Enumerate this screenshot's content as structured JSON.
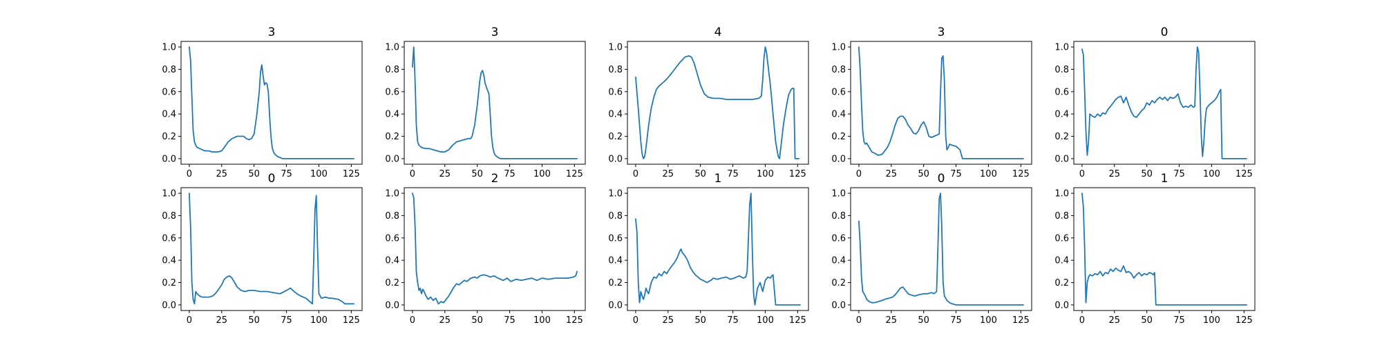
{
  "figure": {
    "background": "#ffffff",
    "line_color": "#1f77b4"
  },
  "chart_data": [
    {
      "type": "line",
      "title": "3",
      "xlim": [
        0,
        127
      ],
      "ylim": [
        0,
        1
      ],
      "xticks": [
        0,
        25,
        50,
        75,
        100,
        125
      ],
      "yticks": [
        0.0,
        0.2,
        0.4,
        0.6,
        0.8,
        1.0
      ],
      "x": [
        0,
        1,
        2,
        3,
        4,
        5,
        6,
        8,
        10,
        12,
        15,
        18,
        20,
        22,
        25,
        27,
        30,
        33,
        35,
        37,
        39,
        42,
        44,
        46,
        48,
        50,
        52,
        54,
        55,
        56,
        57,
        58,
        59,
        60,
        61,
        62,
        63,
        64,
        65,
        66,
        68,
        70,
        72,
        73,
        75,
        127
      ],
      "y": [
        1.0,
        0.88,
        0.55,
        0.25,
        0.15,
        0.12,
        0.1,
        0.09,
        0.08,
        0.07,
        0.07,
        0.06,
        0.06,
        0.06,
        0.07,
        0.1,
        0.15,
        0.18,
        0.19,
        0.2,
        0.2,
        0.2,
        0.18,
        0.17,
        0.18,
        0.22,
        0.38,
        0.6,
        0.78,
        0.84,
        0.74,
        0.66,
        0.68,
        0.67,
        0.6,
        0.38,
        0.2,
        0.1,
        0.06,
        0.04,
        0.02,
        0.01,
        0.0,
        0.0,
        0.0,
        0.0
      ]
    },
    {
      "type": "line",
      "title": "3",
      "xlim": [
        0,
        127
      ],
      "ylim": [
        0,
        1
      ],
      "xticks": [
        0,
        25,
        50,
        75,
        100,
        125
      ],
      "yticks": [
        0.0,
        0.2,
        0.4,
        0.6,
        0.8,
        1.0
      ],
      "x": [
        0,
        1,
        2,
        3,
        4,
        5,
        7,
        10,
        13,
        16,
        19,
        22,
        25,
        28,
        31,
        34,
        37,
        40,
        43,
        45,
        46,
        48,
        50,
        52,
        53,
        54,
        55,
        56,
        57,
        58,
        59,
        60,
        61,
        62,
        63,
        64,
        65,
        66,
        68,
        70,
        72,
        75,
        127
      ],
      "y": [
        0.82,
        1.0,
        0.7,
        0.3,
        0.15,
        0.12,
        0.1,
        0.09,
        0.09,
        0.08,
        0.07,
        0.06,
        0.06,
        0.08,
        0.12,
        0.15,
        0.16,
        0.17,
        0.18,
        0.18,
        0.2,
        0.3,
        0.48,
        0.7,
        0.77,
        0.79,
        0.75,
        0.68,
        0.64,
        0.61,
        0.58,
        0.4,
        0.2,
        0.1,
        0.05,
        0.03,
        0.02,
        0.01,
        0.0,
        0.0,
        0.0,
        0.0,
        0.0
      ]
    },
    {
      "type": "line",
      "title": "4",
      "xlim": [
        0,
        127
      ],
      "ylim": [
        0,
        1
      ],
      "xticks": [
        0,
        25,
        50,
        75,
        100,
        125
      ],
      "yticks": [
        0.0,
        0.2,
        0.4,
        0.6,
        0.8,
        1.0
      ],
      "x": [
        0,
        2,
        4,
        5,
        6,
        7,
        8,
        10,
        12,
        14,
        16,
        18,
        20,
        23,
        26,
        30,
        34,
        38,
        41,
        43,
        45,
        47,
        50,
        53,
        56,
        60,
        65,
        70,
        75,
        80,
        85,
        90,
        95,
        97,
        98,
        99,
        100,
        101,
        102,
        104,
        106,
        108,
        110,
        111,
        112,
        114,
        116,
        118,
        120,
        121,
        122,
        123,
        124,
        125,
        126
      ],
      "y": [
        0.73,
        0.45,
        0.15,
        0.04,
        0.0,
        0.02,
        0.1,
        0.3,
        0.45,
        0.55,
        0.62,
        0.65,
        0.67,
        0.7,
        0.74,
        0.8,
        0.86,
        0.91,
        0.92,
        0.91,
        0.86,
        0.78,
        0.66,
        0.58,
        0.55,
        0.54,
        0.54,
        0.53,
        0.53,
        0.53,
        0.53,
        0.53,
        0.54,
        0.56,
        0.7,
        0.9,
        1.0,
        0.95,
        0.85,
        0.65,
        0.4,
        0.15,
        0.02,
        0.0,
        0.1,
        0.3,
        0.45,
        0.57,
        0.62,
        0.63,
        0.63,
        0.0,
        0.0,
        0.0,
        0.0
      ]
    },
    {
      "type": "line",
      "title": "3",
      "xlim": [
        0,
        127
      ],
      "ylim": [
        0,
        1
      ],
      "xticks": [
        0,
        25,
        50,
        75,
        100,
        125
      ],
      "yticks": [
        0.0,
        0.2,
        0.4,
        0.6,
        0.8,
        1.0
      ],
      "x": [
        0,
        1,
        2,
        3,
        4,
        5,
        6,
        8,
        10,
        12,
        15,
        18,
        20,
        22,
        24,
        26,
        28,
        30,
        32,
        34,
        36,
        38,
        40,
        42,
        44,
        46,
        48,
        50,
        52,
        54,
        56,
        58,
        60,
        62,
        63,
        64,
        65,
        66,
        67,
        68,
        69,
        70,
        72,
        75,
        78,
        80,
        127
      ],
      "y": [
        1.0,
        0.8,
        0.5,
        0.25,
        0.15,
        0.13,
        0.14,
        0.1,
        0.06,
        0.05,
        0.03,
        0.04,
        0.07,
        0.1,
        0.15,
        0.22,
        0.3,
        0.36,
        0.38,
        0.38,
        0.35,
        0.3,
        0.27,
        0.23,
        0.22,
        0.25,
        0.3,
        0.33,
        0.28,
        0.2,
        0.19,
        0.2,
        0.21,
        0.22,
        0.6,
        0.9,
        0.92,
        0.7,
        0.2,
        0.08,
        0.1,
        0.13,
        0.12,
        0.11,
        0.08,
        0.0,
        0.0
      ]
    },
    {
      "type": "line",
      "title": "0",
      "xlim": [
        0,
        127
      ],
      "ylim": [
        0,
        1
      ],
      "xticks": [
        0,
        25,
        50,
        75,
        100,
        125
      ],
      "yticks": [
        0.0,
        0.2,
        0.4,
        0.6,
        0.8,
        1.0
      ],
      "x": [
        0,
        1,
        2,
        3,
        4,
        5,
        6,
        8,
        10,
        12,
        14,
        16,
        18,
        20,
        22,
        24,
        26,
        28,
        30,
        32,
        34,
        36,
        38,
        40,
        42,
        44,
        46,
        48,
        50,
        52,
        54,
        56,
        58,
        60,
        62,
        64,
        66,
        68,
        70,
        72,
        74,
        76,
        78,
        80,
        82,
        84,
        86,
        87,
        88,
        89,
        90,
        91,
        92,
        93,
        94,
        95,
        96,
        98,
        100,
        102,
        104,
        106,
        107,
        108,
        110,
        127
      ],
      "y": [
        0.98,
        0.93,
        0.6,
        0.25,
        0.03,
        0.15,
        0.4,
        0.38,
        0.37,
        0.4,
        0.38,
        0.41,
        0.4,
        0.44,
        0.47,
        0.5,
        0.53,
        0.55,
        0.56,
        0.5,
        0.55,
        0.48,
        0.42,
        0.38,
        0.37,
        0.4,
        0.43,
        0.45,
        0.5,
        0.48,
        0.52,
        0.5,
        0.53,
        0.55,
        0.53,
        0.55,
        0.52,
        0.55,
        0.54,
        0.55,
        0.58,
        0.5,
        0.46,
        0.47,
        0.46,
        0.48,
        0.46,
        0.47,
        0.8,
        1.0,
        0.95,
        0.6,
        0.2,
        0.02,
        0.15,
        0.35,
        0.45,
        0.48,
        0.5,
        0.52,
        0.55,
        0.6,
        0.62,
        0.0,
        0.0,
        0.0
      ]
    },
    {
      "type": "line",
      "title": "0",
      "xlim": [
        0,
        127
      ],
      "ylim": [
        0,
        1
      ],
      "xticks": [
        0,
        25,
        50,
        75,
        100,
        125
      ],
      "yticks": [
        0.0,
        0.2,
        0.4,
        0.6,
        0.8,
        1.0
      ],
      "x": [
        0,
        1,
        2,
        3,
        4,
        5,
        6,
        8,
        10,
        12,
        15,
        18,
        20,
        22,
        25,
        27,
        29,
        31,
        33,
        35,
        37,
        40,
        43,
        46,
        50,
        55,
        60,
        65,
        70,
        75,
        78,
        80,
        83,
        86,
        90,
        92,
        94,
        95,
        96,
        97,
        98,
        99,
        100,
        102,
        105,
        108,
        110,
        115,
        118,
        120,
        122,
        125,
        127
      ],
      "y": [
        1.0,
        0.7,
        0.2,
        0.05,
        0.01,
        0.12,
        0.1,
        0.08,
        0.07,
        0.07,
        0.07,
        0.08,
        0.1,
        0.13,
        0.18,
        0.23,
        0.25,
        0.26,
        0.24,
        0.2,
        0.16,
        0.13,
        0.12,
        0.13,
        0.13,
        0.12,
        0.12,
        0.11,
        0.1,
        0.13,
        0.15,
        0.13,
        0.1,
        0.08,
        0.06,
        0.04,
        0.02,
        0.01,
        0.4,
        0.85,
        0.98,
        0.5,
        0.1,
        0.06,
        0.07,
        0.06,
        0.06,
        0.05,
        0.03,
        0.01,
        0.01,
        0.01,
        0.01
      ]
    },
    {
      "type": "line",
      "title": "2",
      "xlim": [
        0,
        127
      ],
      "ylim": [
        0,
        1
      ],
      "xticks": [
        0,
        25,
        50,
        75,
        100,
        125
      ],
      "yticks": [
        0.0,
        0.2,
        0.4,
        0.6,
        0.8,
        1.0
      ],
      "x": [
        0,
        1,
        2,
        3,
        4,
        5,
        6,
        7,
        8,
        9,
        10,
        12,
        14,
        16,
        18,
        20,
        22,
        24,
        26,
        28,
        30,
        32,
        34,
        36,
        38,
        40,
        42,
        45,
        48,
        50,
        52,
        55,
        58,
        60,
        63,
        66,
        70,
        73,
        76,
        80,
        84,
        88,
        92,
        96,
        100,
        105,
        110,
        115,
        120,
        124,
        126,
        127
      ],
      "y": [
        1.0,
        0.96,
        0.7,
        0.3,
        0.2,
        0.13,
        0.15,
        0.1,
        0.14,
        0.12,
        0.09,
        0.05,
        0.07,
        0.04,
        0.06,
        0.01,
        0.03,
        0.02,
        0.05,
        0.08,
        0.12,
        0.16,
        0.19,
        0.18,
        0.2,
        0.22,
        0.21,
        0.24,
        0.25,
        0.24,
        0.26,
        0.27,
        0.26,
        0.25,
        0.26,
        0.24,
        0.22,
        0.24,
        0.21,
        0.23,
        0.22,
        0.23,
        0.24,
        0.22,
        0.24,
        0.23,
        0.24,
        0.24,
        0.24,
        0.25,
        0.26,
        0.3
      ]
    },
    {
      "type": "line",
      "title": "1",
      "xlim": [
        0,
        127
      ],
      "ylim": [
        0,
        1
      ],
      "xticks": [
        0,
        25,
        50,
        75,
        100,
        125
      ],
      "yticks": [
        0.0,
        0.2,
        0.4,
        0.6,
        0.8,
        1.0
      ],
      "x": [
        0,
        1,
        2,
        3,
        4,
        5,
        6,
        7,
        8,
        9,
        10,
        12,
        14,
        16,
        18,
        20,
        22,
        24,
        26,
        28,
        30,
        32,
        34,
        35,
        36,
        38,
        40,
        42,
        44,
        46,
        48,
        50,
        52,
        55,
        58,
        60,
        63,
        66,
        70,
        73,
        76,
        80,
        83,
        85,
        86,
        87,
        88,
        89,
        90,
        91,
        92,
        94,
        96,
        98,
        100,
        102,
        104,
        105,
        106,
        108,
        110,
        127
      ],
      "y": [
        0.77,
        0.65,
        0.2,
        0.02,
        0.12,
        0.08,
        0.05,
        0.09,
        0.15,
        0.12,
        0.1,
        0.2,
        0.25,
        0.24,
        0.28,
        0.26,
        0.3,
        0.28,
        0.32,
        0.35,
        0.38,
        0.42,
        0.48,
        0.5,
        0.47,
        0.44,
        0.4,
        0.34,
        0.3,
        0.27,
        0.25,
        0.23,
        0.22,
        0.2,
        0.22,
        0.24,
        0.23,
        0.24,
        0.25,
        0.23,
        0.24,
        0.26,
        0.24,
        0.25,
        0.3,
        0.6,
        0.9,
        1.0,
        0.5,
        0.1,
        0.0,
        0.15,
        0.2,
        0.12,
        0.22,
        0.25,
        0.24,
        0.26,
        0.27,
        0.0,
        0.0,
        0.0
      ]
    },
    {
      "type": "line",
      "title": "0",
      "xlim": [
        0,
        127
      ],
      "ylim": [
        0,
        1
      ],
      "xticks": [
        0,
        25,
        50,
        75,
        100,
        125
      ],
      "yticks": [
        0.0,
        0.2,
        0.4,
        0.6,
        0.8,
        1.0
      ],
      "x": [
        0,
        1,
        2,
        3,
        4,
        5,
        6,
        8,
        10,
        12,
        15,
        18,
        20,
        23,
        26,
        28,
        30,
        32,
        34,
        36,
        38,
        40,
        43,
        46,
        50,
        53,
        56,
        58,
        60,
        61,
        62,
        63,
        64,
        65,
        66,
        67,
        68,
        70,
        72,
        75,
        127
      ],
      "y": [
        0.75,
        0.55,
        0.25,
        0.12,
        0.1,
        0.08,
        0.05,
        0.03,
        0.02,
        0.02,
        0.03,
        0.04,
        0.05,
        0.06,
        0.07,
        0.09,
        0.12,
        0.15,
        0.16,
        0.13,
        0.1,
        0.09,
        0.08,
        0.09,
        0.1,
        0.1,
        0.11,
        0.1,
        0.12,
        0.5,
        0.95,
        1.0,
        0.7,
        0.2,
        0.08,
        0.06,
        0.04,
        0.02,
        0.01,
        0.0,
        0.0
      ]
    },
    {
      "type": "line",
      "title": "1",
      "xlim": [
        0,
        127
      ],
      "ylim": [
        0,
        1
      ],
      "xticks": [
        0,
        25,
        50,
        75,
        100,
        125
      ],
      "yticks": [
        0.0,
        0.2,
        0.4,
        0.6,
        0.8,
        1.0
      ],
      "x": [
        0,
        1,
        2,
        3,
        4,
        5,
        6,
        8,
        10,
        12,
        14,
        16,
        18,
        20,
        22,
        24,
        26,
        28,
        30,
        32,
        34,
        36,
        38,
        40,
        42,
        44,
        46,
        48,
        50,
        52,
        54,
        55,
        56,
        57,
        58,
        60,
        127
      ],
      "y": [
        1.0,
        0.88,
        0.5,
        0.02,
        0.2,
        0.25,
        0.27,
        0.26,
        0.28,
        0.27,
        0.3,
        0.26,
        0.29,
        0.28,
        0.32,
        0.3,
        0.33,
        0.31,
        0.3,
        0.35,
        0.29,
        0.3,
        0.28,
        0.24,
        0.27,
        0.29,
        0.26,
        0.28,
        0.27,
        0.29,
        0.28,
        0.27,
        0.29,
        0.0,
        0.0,
        0.0,
        0.0
      ]
    }
  ]
}
